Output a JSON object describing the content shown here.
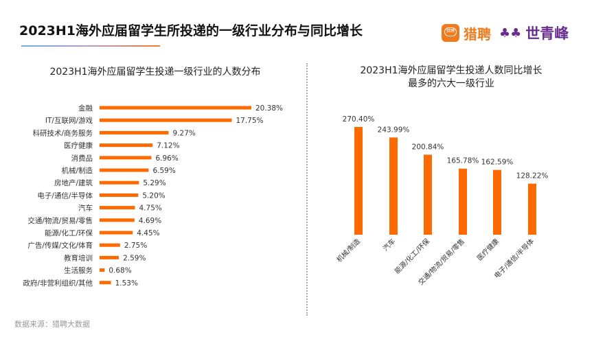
{
  "header": {
    "title": "2023H1海外应届留学生所投递的一级行业分布与同比增长",
    "logo_badge": "猎聘",
    "logo_brand1": "猎聘",
    "logo_mark": "♣♣",
    "logo_brand2": "世青峰"
  },
  "colors": {
    "bar": "#ff6a00",
    "title_line_start": "#6aaee8",
    "title_line_end": "#f07a2e",
    "brand_orange": "#f07a1e",
    "brand_purple": "#6a2d8f"
  },
  "footer": {
    "source": "数据来源：猎聘大数据"
  },
  "chart_data": [
    {
      "type": "bar",
      "orientation": "horizontal",
      "title": "2023H1海外应届留学生投递一级行业的人数分布",
      "categories": [
        "金融",
        "IT/互联网/游戏",
        "科研技术/商务服务",
        "医疗健康",
        "消费品",
        "机械/制造",
        "房地产/建筑",
        "电子/通信/半导体",
        "汽车",
        "交通/物流/贸易/零售",
        "能源/化工/环保",
        "广告/传媒/文化/体育",
        "教育培训",
        "生活服务",
        "政府/非营利组织/其他"
      ],
      "values": [
        20.38,
        17.75,
        9.27,
        7.12,
        6.96,
        6.59,
        5.29,
        5.2,
        4.75,
        4.69,
        4.45,
        2.75,
        2.59,
        0.68,
        1.53
      ],
      "labels": [
        "20.38%",
        "17.75%",
        "9.27%",
        "7.12%",
        "6.96%",
        "6.59%",
        "5.29%",
        "5.20%",
        "4.75%",
        "4.69%",
        "4.45%",
        "2.75%",
        "2.59%",
        "0.68%",
        "1.53%"
      ],
      "unit": "%",
      "grid": false,
      "legend": "none"
    },
    {
      "type": "bar",
      "orientation": "vertical",
      "title": "2023H1海外应届留学生投递人数同比增长",
      "subtitle": "最多的六大一级行业",
      "categories": [
        "机械/制造",
        "汽车",
        "能源/化工/环保",
        "交通/物流/贸易/零售",
        "医疗健康",
        "电子/通信/半导体"
      ],
      "values": [
        270.4,
        243.99,
        200.84,
        165.78,
        162.59,
        128.22
      ],
      "labels": [
        "270.40%",
        "243.99%",
        "200.84%",
        "165.78%",
        "162.59%",
        "128.22%"
      ],
      "unit": "%",
      "grid": false,
      "legend": "none"
    }
  ]
}
